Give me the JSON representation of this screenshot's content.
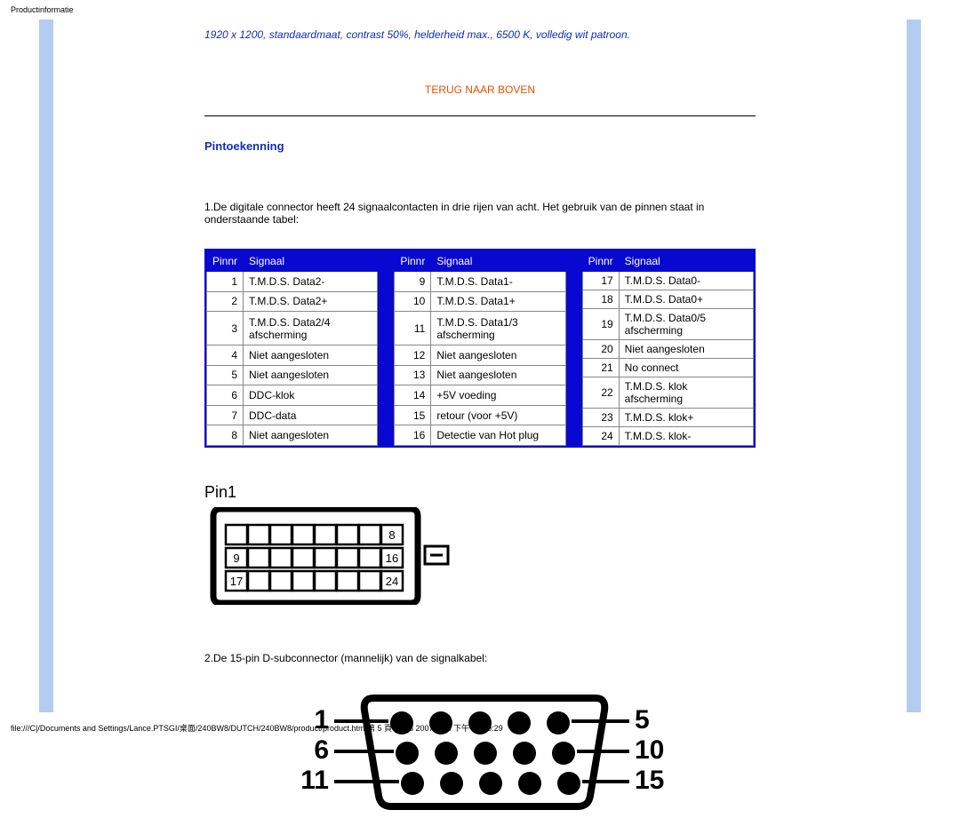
{
  "header": "Productinformatie",
  "top_note": "1920 x 1200, standaardmaat, contrast 50%, helderheid max., 6500 K, volledig wit patroon.",
  "back_top": "TERUG NAAR BOVEN",
  "section_heading": "Pintoekenning",
  "intro": "1.De digitale connector heeft 24 signaalcontacten in drie rijen van acht. Het gebruik van de pinnen staat in onderstaande tabel:",
  "table": {
    "header_pin": "Pinnr",
    "header_signal": "Signaal",
    "header_bg": "#0808d1",
    "header_fg": "#ffffff",
    "border_color": "#888888",
    "cell_bg": "#ffffff",
    "groups": [
      {
        "rows": [
          {
            "n": "1",
            "s": "T.M.D.S. Data2-"
          },
          {
            "n": "2",
            "s": "T.M.D.S. Data2+"
          },
          {
            "n": "3",
            "s": "T.M.D.S. Data2/4 afscherming"
          },
          {
            "n": "4",
            "s": "Niet aangesloten"
          },
          {
            "n": "5",
            "s": "Niet aangesloten"
          },
          {
            "n": "6",
            "s": "DDC-klok"
          },
          {
            "n": "7",
            "s": "DDC-data"
          },
          {
            "n": "8",
            "s": "Niet aangesloten"
          }
        ]
      },
      {
        "rows": [
          {
            "n": "9",
            "s": "T.M.D.S. Data1-"
          },
          {
            "n": "10",
            "s": "T.M.D.S. Data1+"
          },
          {
            "n": "11",
            "s": "T.M.D.S. Data1/3 afscherming"
          },
          {
            "n": "12",
            "s": "Niet aangesloten"
          },
          {
            "n": "13",
            "s": "Niet aangesloten"
          },
          {
            "n": "14",
            "s": "+5V voeding"
          },
          {
            "n": "15",
            "s": "retour (voor +5V)"
          },
          {
            "n": "16",
            "s": "Detectie van Hot plug"
          }
        ]
      },
      {
        "rows": [
          {
            "n": "17",
            "s": "T.M.D.S. Data0-"
          },
          {
            "n": "18",
            "s": "T.M.D.S. Data0+"
          },
          {
            "n": "19",
            "s": "T.M.D.S. Data0/5 afscherming"
          },
          {
            "n": "20",
            "s": "Niet aangesloten"
          },
          {
            "n": "21",
            "s": "No connect"
          },
          {
            "n": "22",
            "s": "T.M.D.S. klok afscherming"
          },
          {
            "n": "23",
            "s": "T.M.D.S. klok+"
          },
          {
            "n": "24",
            "s": "T.M.D.S. klok-"
          }
        ]
      }
    ]
  },
  "dvi_diagram": {
    "label": "Pin1",
    "pin_boxes": [
      "8",
      "9",
      "16",
      "17",
      "24"
    ],
    "outline_color": "#000000",
    "bg": "#ffffff"
  },
  "sub_text": "2.De 15-pin D-subconnector (mannelijk) van de signalkabel:",
  "vga_diagram": {
    "left_labels": [
      "1",
      "6",
      "11"
    ],
    "right_labels": [
      "5",
      "10",
      "15"
    ],
    "pin_rows": [
      5,
      5,
      5
    ],
    "pin_color": "#000000",
    "label_color": "#000000",
    "outline_color": "#000000",
    "bg": "#ffffff"
  },
  "colors": {
    "sidebar": "#b4ccef",
    "link_orange": "#e94e00",
    "heading_blue": "#0e2dbb",
    "note_blue": "#0e2dbb"
  },
  "footer": "file:///C|/Documents and Settings/Lance.PTSGI/桌面/240BW8/DUTCH/240BW8/product/product.htm 第 5 頁 / 共 8 2007/8/16 下午 07:49:29"
}
